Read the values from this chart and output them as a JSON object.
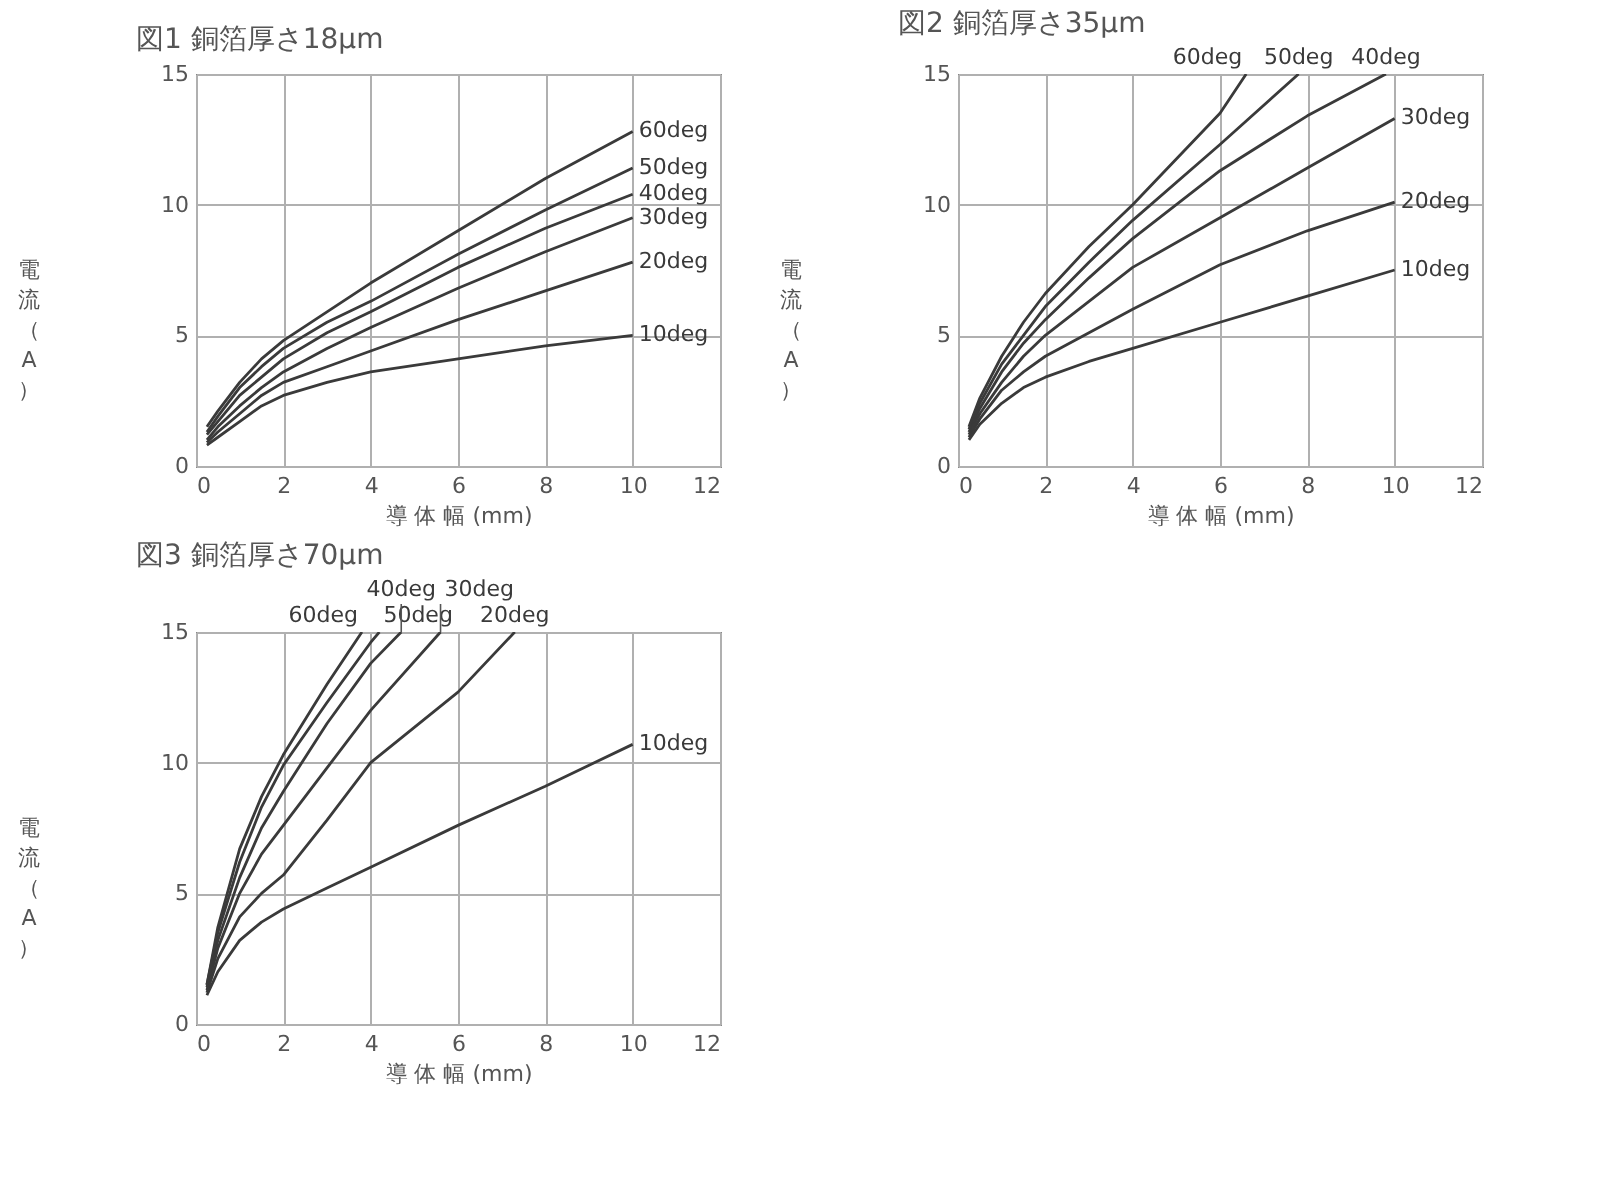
{
  "chart_data": [
    {
      "type": "line",
      "title": "図1 銅箔厚さ18μm",
      "xlabel": "導 体 幅 (mm)",
      "ylabel": "電流（A）",
      "xlim": [
        0,
        12
      ],
      "xticks": [
        0,
        2,
        4,
        6,
        8,
        10,
        12
      ],
      "ylim": [
        0,
        15
      ],
      "yticks": [
        0,
        5,
        10,
        15
      ],
      "grid": true,
      "x": [
        0.25,
        0.5,
        1,
        1.5,
        2,
        3,
        4,
        6,
        8,
        10
      ],
      "series": [
        {
          "name": "10deg",
          "color": "#3a3a3a",
          "values": [
            0.8,
            1.1,
            1.7,
            2.3,
            2.7,
            3.2,
            3.6,
            4.1,
            4.6,
            5.0
          ]
        },
        {
          "name": "20deg",
          "color": "#3a3a3a",
          "values": [
            0.9,
            1.3,
            2.0,
            2.7,
            3.2,
            3.8,
            4.4,
            5.6,
            6.7,
            7.8
          ]
        },
        {
          "name": "30deg",
          "color": "#3a3a3a",
          "values": [
            1.0,
            1.5,
            2.3,
            3.0,
            3.6,
            4.5,
            5.3,
            6.8,
            8.2,
            9.5
          ]
        },
        {
          "name": "40deg",
          "color": "#3a3a3a",
          "values": [
            1.2,
            1.7,
            2.7,
            3.4,
            4.1,
            5.1,
            5.9,
            7.6,
            9.1,
            10.4
          ]
        },
        {
          "name": "50deg",
          "color": "#3a3a3a",
          "values": [
            1.3,
            1.9,
            3.0,
            3.8,
            4.5,
            5.5,
            6.3,
            8.1,
            9.8,
            11.4
          ]
        },
        {
          "name": "60deg",
          "color": "#3a3a3a",
          "values": [
            1.5,
            2.1,
            3.2,
            4.1,
            4.8,
            5.9,
            7.0,
            9.0,
            11.0,
            12.8
          ]
        }
      ]
    },
    {
      "type": "line",
      "title": "図2 銅箔厚さ35μm",
      "xlabel": "導 体 幅 (mm)",
      "ylabel": "電流（A）",
      "xlim": [
        0,
        12
      ],
      "xticks": [
        0,
        2,
        4,
        6,
        8,
        10,
        12
      ],
      "ylim": [
        0,
        15
      ],
      "yticks": [
        0,
        5,
        10,
        15
      ],
      "grid": true,
      "x": [
        0.25,
        0.5,
        1,
        1.5,
        2,
        3,
        4,
        6,
        8,
        10
      ],
      "series": [
        {
          "name": "10deg",
          "color": "#3a3a3a",
          "values": [
            1.0,
            1.6,
            2.4,
            3.0,
            3.4,
            4.0,
            4.5,
            5.5,
            6.5,
            7.5
          ]
        },
        {
          "name": "20deg",
          "color": "#3a3a3a",
          "values": [
            1.1,
            1.8,
            2.9,
            3.6,
            4.2,
            5.1,
            6.0,
            7.7,
            9.0,
            10.1
          ]
        },
        {
          "name": "30deg",
          "color": "#3a3a3a",
          "values": [
            1.2,
            2.0,
            3.2,
            4.2,
            5.0,
            6.3,
            7.6,
            9.5,
            11.4,
            13.3
          ]
        },
        {
          "name": "40deg",
          "color": "#3a3a3a",
          "x": [
            0.25,
            0.5,
            1,
            1.5,
            2,
            3,
            4,
            6,
            8,
            9.8
          ],
          "values": [
            1.3,
            2.2,
            3.6,
            4.7,
            5.6,
            7.2,
            8.7,
            11.3,
            13.4,
            15
          ]
        },
        {
          "name": "50deg",
          "color": "#3a3a3a",
          "x": [
            0.25,
            0.5,
            1,
            1.5,
            2,
            3,
            4,
            6,
            7.8
          ],
          "values": [
            1.4,
            2.4,
            3.9,
            5.0,
            6.1,
            7.8,
            9.4,
            12.3,
            15
          ]
        },
        {
          "name": "60deg",
          "color": "#3a3a3a",
          "x": [
            0.25,
            0.5,
            1,
            1.5,
            2,
            3,
            4,
            6,
            6.6
          ],
          "values": [
            1.5,
            2.6,
            4.2,
            5.5,
            6.6,
            8.4,
            10.0,
            13.5,
            15
          ]
        }
      ]
    },
    {
      "type": "line",
      "title": "図3 銅箔厚さ70μm",
      "xlabel": "導 体 幅 (mm)",
      "ylabel": "電流（A）",
      "xlim": [
        0,
        12
      ],
      "xticks": [
        0,
        2,
        4,
        6,
        8,
        10,
        12
      ],
      "ylim": [
        0,
        15
      ],
      "yticks": [
        0,
        5,
        10,
        15
      ],
      "grid": true,
      "series": [
        {
          "name": "10deg",
          "color": "#3a3a3a",
          "x": [
            0.25,
            0.5,
            1,
            1.5,
            2,
            3,
            4,
            6,
            8,
            10
          ],
          "values": [
            1.1,
            2.0,
            3.2,
            3.9,
            4.4,
            5.2,
            6.0,
            7.6,
            9.1,
            10.7
          ]
        },
        {
          "name": "20deg",
          "color": "#3a3a3a",
          "x": [
            0.25,
            0.5,
            1,
            1.5,
            2,
            3,
            4,
            6,
            7.3
          ],
          "values": [
            1.2,
            2.5,
            4.1,
            5.0,
            5.7,
            7.8,
            10.0,
            12.7,
            15
          ]
        },
        {
          "name": "30deg",
          "color": "#3a3a3a",
          "x": [
            0.25,
            0.5,
            1,
            1.5,
            2,
            3,
            4,
            5.6
          ],
          "values": [
            1.3,
            2.9,
            5.0,
            6.5,
            7.6,
            9.8,
            12.0,
            15
          ]
        },
        {
          "name": "40deg",
          "color": "#3a3a3a",
          "x": [
            0.25,
            0.5,
            1,
            1.5,
            2,
            3,
            4,
            4.7
          ],
          "values": [
            1.4,
            3.2,
            5.6,
            7.5,
            8.9,
            11.5,
            13.8,
            15
          ]
        },
        {
          "name": "50deg",
          "color": "#3a3a3a",
          "x": [
            0.25,
            0.5,
            1,
            1.5,
            2,
            3,
            4,
            4.2
          ],
          "values": [
            1.5,
            3.5,
            6.2,
            8.3,
            9.9,
            12.3,
            14.6,
            15
          ]
        },
        {
          "name": "60deg",
          "color": "#3a3a3a",
          "x": [
            0.25,
            0.5,
            1,
            1.5,
            2,
            3,
            3.8
          ],
          "values": [
            1.5,
            3.7,
            6.7,
            8.7,
            10.3,
            13.0,
            15
          ]
        }
      ]
    }
  ]
}
